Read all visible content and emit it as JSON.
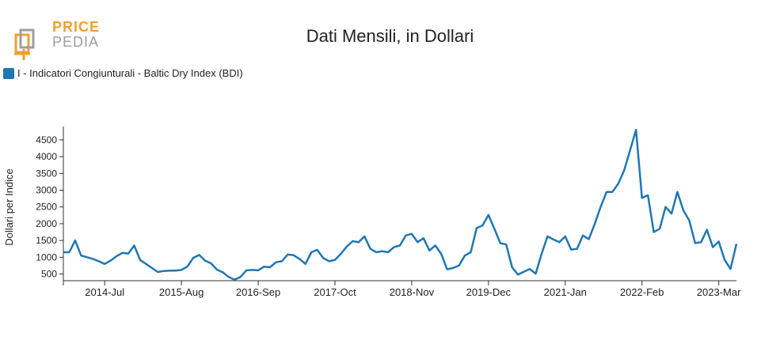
{
  "brand": {
    "line1": "PRICE",
    "line2": "PEDIA",
    "accent": "#f0a030",
    "secondary": "#9e9e9e"
  },
  "chart_data": {
    "type": "line",
    "title": "Dati Mensili, in Dollari",
    "ylabel": "Dollari per Indice",
    "xlabel": "",
    "ylim": [
      300,
      4900
    ],
    "yticks": [
      500,
      1000,
      1500,
      2000,
      2500,
      3000,
      3500,
      4000,
      4500
    ],
    "x_tick_labels": [
      "2014-Jul",
      "2015-Aug",
      "2016-Sep",
      "2017-Oct",
      "2018-Nov",
      "2019-Dec",
      "2021-Jan",
      "2022-Feb",
      "2023-Mar"
    ],
    "x_start": "2013-Dec",
    "x_end": "2023-Mar",
    "legend_position": "top-left",
    "grid": false,
    "series": [
      {
        "name": "I - Indicatori Congiunturali - Baltic Dry Index (BDI)",
        "color": "#1f77b4",
        "values": [
          1150,
          1150,
          1500,
          1050,
          1000,
          950,
          880,
          800,
          900,
          1030,
          1130,
          1110,
          1350,
          920,
          800,
          680,
          560,
          590,
          600,
          600,
          620,
          720,
          980,
          1070,
          900,
          820,
          630,
          550,
          410,
          330,
          410,
          610,
          620,
          610,
          720,
          700,
          850,
          880,
          1080,
          1060,
          950,
          800,
          1150,
          1220,
          980,
          880,
          920,
          1100,
          1320,
          1480,
          1450,
          1620,
          1250,
          1150,
          1180,
          1150,
          1300,
          1350,
          1650,
          1700,
          1450,
          1570,
          1200,
          1350,
          1100,
          640,
          680,
          750,
          1050,
          1150,
          1870,
          1950,
          2260,
          1850,
          1420,
          1380,
          700,
          480,
          570,
          650,
          510,
          1100,
          1620,
          1530,
          1450,
          1620,
          1230,
          1250,
          1650,
          1540,
          2000,
          2500,
          2950,
          2950,
          3200,
          3600,
          4200,
          4800,
          2770,
          2850,
          1750,
          1850,
          2500,
          2300,
          2950,
          2400,
          2100,
          1420,
          1450,
          1820,
          1300,
          1470,
          920,
          650,
          1400
        ]
      }
    ]
  }
}
